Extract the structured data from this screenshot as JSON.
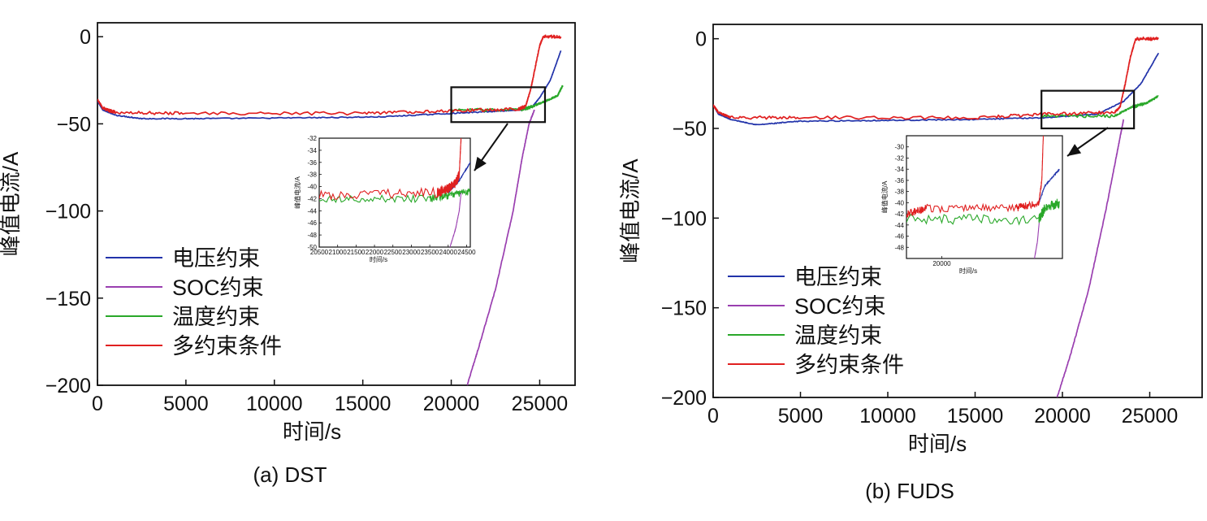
{
  "chart_data": [
    {
      "type": "line",
      "title": "",
      "caption": "(a) DST",
      "xlabel": "时间/s",
      "ylabel": "峰值电流/A",
      "xlim": [
        0,
        27000
      ],
      "ylim": [
        -200,
        8
      ],
      "xticks": [
        0,
        5000,
        10000,
        15000,
        20000,
        25000
      ],
      "xtick_labels": [
        "0",
        "5000",
        "10000",
        "15000",
        "20000",
        "25000"
      ],
      "yticks": [
        0,
        -50,
        -100,
        -150,
        -200
      ],
      "ytick_labels": [
        "0",
        "−50",
        "−100",
        "−150",
        "−200"
      ],
      "legend": [
        "电压约束",
        "SOC约束",
        "温度约束",
        "多约束条件"
      ],
      "legend_position": "bottom-left",
      "zoom_box": {
        "x": [
          20000,
          25300
        ],
        "y": [
          -49,
          -29
        ]
      },
      "series": [
        {
          "name": "电压约束",
          "color": "#2233aa",
          "noise": 0.3,
          "points": [
            [
              0,
              -37
            ],
            [
              300,
              -42
            ],
            [
              1000,
              -45
            ],
            [
              2500,
              -47
            ],
            [
              6000,
              -47
            ],
            [
              12000,
              -46.5
            ],
            [
              16000,
              -46
            ],
            [
              20000,
              -44
            ],
            [
              22000,
              -43
            ],
            [
              24000,
              -42
            ],
            [
              24600,
              -40
            ],
            [
              25000,
              -35
            ],
            [
              25600,
              -25
            ],
            [
              26200,
              -8
            ]
          ]
        },
        {
          "name": "SOC约束",
          "color": "#9a3fb0",
          "noise": 0.6,
          "points": [
            [
              20900,
              -200
            ],
            [
              21500,
              -180
            ],
            [
              22500,
              -145
            ],
            [
              23500,
              -100
            ],
            [
              24000,
              -70
            ],
            [
              24400,
              -50
            ],
            [
              24700,
              -42
            ]
          ]
        },
        {
          "name": "温度约束",
          "color": "#2aa82a",
          "noise": 0.9,
          "points": [
            [
              20000,
              -42
            ],
            [
              24000,
              -42
            ],
            [
              24600,
              -40
            ],
            [
              25300,
              -37
            ],
            [
              26000,
              -34
            ],
            [
              26300,
              -28
            ]
          ]
        },
        {
          "name": "多约束条件",
          "color": "#e02020",
          "noise": 0.9,
          "points": [
            [
              0,
              -36
            ],
            [
              300,
              -41
            ],
            [
              1000,
              -43.5
            ],
            [
              5000,
              -44
            ],
            [
              15000,
              -44
            ],
            [
              20000,
              -42.5
            ],
            [
              23800,
              -41.5
            ],
            [
              24200,
              -40
            ],
            [
              24500,
              -30
            ],
            [
              24700,
              -20
            ],
            [
              25000,
              -5
            ],
            [
              25200,
              0
            ],
            [
              26200,
              0
            ]
          ]
        }
      ],
      "inset": {
        "xlabel": "时间/s",
        "ylabel": "峰值电流/A",
        "xlim": [
          20500,
          24600
        ],
        "ylim": [
          -50,
          -32
        ],
        "xticks": [
          20500,
          21000,
          21500,
          22000,
          22500,
          23000,
          23500,
          24000,
          24500
        ],
        "xtick_labels": [
          "20500",
          "21000",
          "21500",
          "22000",
          "22500",
          "23000",
          "23500",
          "24000",
          "24500"
        ],
        "yticks": [
          -32,
          -34,
          -36,
          -38,
          -40,
          -42,
          -44,
          -46,
          -48,
          -50
        ],
        "ytick_labels": [
          "-32",
          "-34",
          "-36",
          "-38",
          "-40",
          "-42",
          "-44",
          "-46",
          "-48",
          "-50"
        ],
        "series": [
          {
            "name": "电压约束",
            "color": "#2233aa",
            "noise": 0.15,
            "points": [
              [
                24000,
                -41
              ],
              [
                24300,
                -39
              ],
              [
                24600,
                -36
              ]
            ]
          },
          {
            "name": "SOC约束",
            "color": "#9a3fb0",
            "noise": 0.1,
            "points": [
              [
                24050,
                -50
              ],
              [
                24200,
                -47
              ],
              [
                24300,
                -44
              ],
              [
                24350,
                -41
              ]
            ]
          },
          {
            "name": "温度约束",
            "color": "#2aa82a",
            "noise": 0.6,
            "points": [
              [
                20500,
                -42
              ],
              [
                23500,
                -42
              ],
              [
                24000,
                -41.5
              ],
              [
                24600,
                -40.8
              ]
            ]
          },
          {
            "name": "多约束条件",
            "color": "#e02020",
            "noise": 0.8,
            "points": [
              [
                20500,
                -41.5
              ],
              [
                23700,
                -41
              ],
              [
                24000,
                -40.3
              ],
              [
                24200,
                -39.5
              ],
              [
                24300,
                -38
              ],
              [
                24350,
                -32
              ]
            ]
          }
        ]
      }
    },
    {
      "type": "line",
      "title": "",
      "caption": "(b) FUDS",
      "xlabel": "时间/s",
      "ylabel": "峰值电流/A",
      "xlim": [
        0,
        28000
      ],
      "ylim": [
        -200,
        8
      ],
      "xticks": [
        0,
        5000,
        10000,
        15000,
        20000,
        25000
      ],
      "xtick_labels": [
        "0",
        "5000",
        "10000",
        "15000",
        "20000",
        "25000"
      ],
      "yticks": [
        0,
        -50,
        -100,
        -150,
        -200
      ],
      "ytick_labels": [
        "0",
        "−50",
        "−100",
        "−150",
        "−200"
      ],
      "legend": [
        "电压约束",
        "SOC约束",
        "温度约束",
        "多约束条件"
      ],
      "legend_position": "bottom-left",
      "zoom_box": {
        "x": [
          18800,
          24100
        ],
        "y": [
          -50,
          -29
        ]
      },
      "series": [
        {
          "name": "电压约束",
          "color": "#2233aa",
          "noise": 0.3,
          "points": [
            [
              0,
              -37
            ],
            [
              300,
              -42
            ],
            [
              1000,
              -45
            ],
            [
              2500,
              -48
            ],
            [
              5000,
              -46
            ],
            [
              10000,
              -45.5
            ],
            [
              15000,
              -45
            ],
            [
              19000,
              -44
            ],
            [
              22000,
              -42
            ],
            [
              23500,
              -35
            ],
            [
              24500,
              -25
            ],
            [
              25500,
              -8
            ]
          ]
        },
        {
          "name": "SOC约束",
          "color": "#9a3fb0",
          "noise": 0.6,
          "points": [
            [
              19700,
              -200
            ],
            [
              20500,
              -175
            ],
            [
              21500,
              -140
            ],
            [
              22500,
              -95
            ],
            [
              23000,
              -70
            ],
            [
              23300,
              -55
            ],
            [
              23500,
              -45
            ]
          ]
        },
        {
          "name": "温度约束",
          "color": "#2aa82a",
          "noise": 0.9,
          "points": [
            [
              18800,
              -43
            ],
            [
              23000,
              -43
            ],
            [
              24000,
              -38
            ],
            [
              24800,
              -36
            ],
            [
              25500,
              -32
            ]
          ]
        },
        {
          "name": "多约束条件",
          "color": "#e02020",
          "noise": 0.9,
          "points": [
            [
              0,
              -37
            ],
            [
              300,
              -41
            ],
            [
              1000,
              -44
            ],
            [
              5000,
              -44
            ],
            [
              15000,
              -44
            ],
            [
              19000,
              -42
            ],
            [
              23000,
              -41
            ],
            [
              23300,
              -38
            ],
            [
              23600,
              -25
            ],
            [
              23900,
              -10
            ],
            [
              24200,
              0
            ],
            [
              25500,
              0
            ]
          ]
        }
      ],
      "inset": {
        "xlabel": "时间/s",
        "ylabel": "峰值电流/A",
        "xlim": [
          18800,
          24100
        ],
        "ylim": [
          -50,
          -28
        ],
        "xticks": [
          20000
        ],
        "xtick_labels": [
          "20000"
        ],
        "yticks": [
          -30,
          -32,
          -34,
          -36,
          -38,
          -40,
          -42,
          -44,
          -46,
          -48
        ],
        "ytick_labels": [
          "-30",
          "-32",
          "-34",
          "-36",
          "-38",
          "-40",
          "-42",
          "-44",
          "-46",
          "-48"
        ],
        "series": [
          {
            "name": "电压约束",
            "color": "#2233aa",
            "noise": 0.2,
            "points": [
              [
                23300,
                -40
              ],
              [
                23500,
                -37
              ],
              [
                24000,
                -34
              ]
            ]
          },
          {
            "name": "SOC约束",
            "color": "#9a3fb0",
            "noise": 0.1,
            "points": [
              [
                23150,
                -50
              ],
              [
                23250,
                -47
              ],
              [
                23320,
                -43
              ]
            ]
          },
          {
            "name": "温度约束",
            "color": "#2aa82a",
            "noise": 0.9,
            "points": [
              [
                18800,
                -43
              ],
              [
                23300,
                -43
              ],
              [
                23500,
                -41
              ],
              [
                24000,
                -40
              ]
            ]
          },
          {
            "name": "多约束条件",
            "color": "#e02020",
            "noise": 0.7,
            "points": [
              [
                18800,
                -42
              ],
              [
                19500,
                -41
              ],
              [
                22500,
                -41
              ],
              [
                23300,
                -40
              ],
              [
                23400,
                -36
              ],
              [
                23450,
                -28
              ]
            ]
          }
        ]
      }
    }
  ]
}
